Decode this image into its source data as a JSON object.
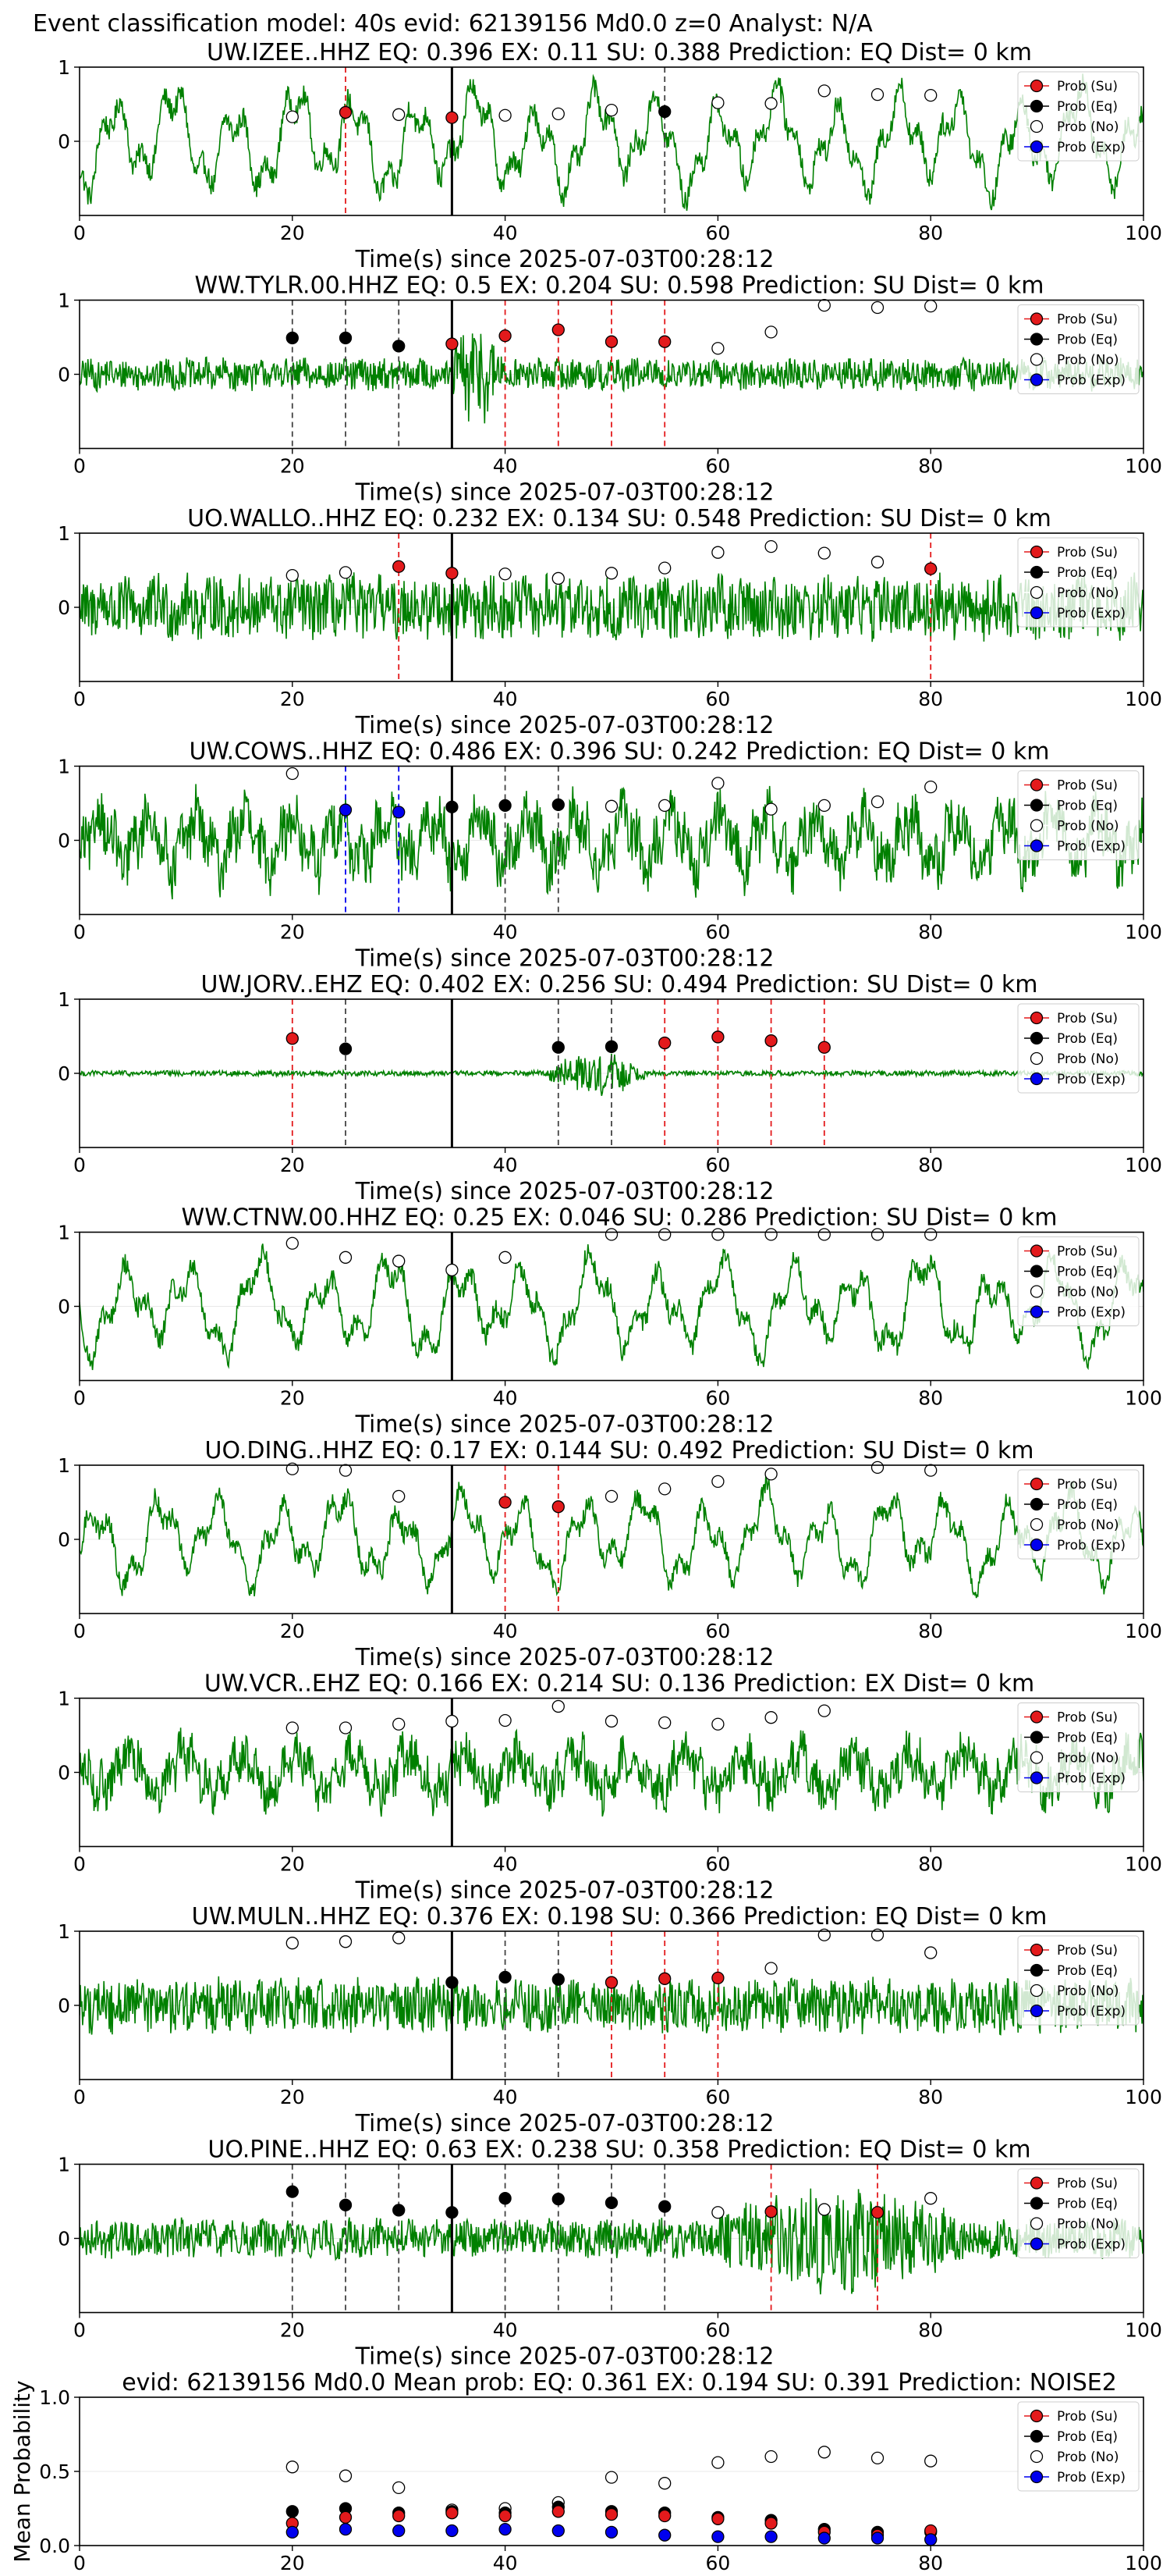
{
  "figure_title": "Event classification model: 40s evid: 62139156 Md0.0 z=0 Analyst: N/A",
  "colors": {
    "trace": "#008000",
    "su": "#e31a1c",
    "eq": "#000000",
    "no": "#ffffff",
    "exp": "#0000ee",
    "vline": "#000000"
  },
  "legend": [
    "Prob (Su)",
    "Prob (Eq)",
    "Prob (No)",
    "Prob (Exp)"
  ],
  "chart_data": [
    {
      "type": "line",
      "title": "UW.IZEE..HHZ   EQ: 0.396  EX: 0.11  SU: 0.388   Prediction: EQ    Dist= 0 km",
      "xlabel": "Time(s) since 2025-07-03T00:28:12",
      "xlim": [
        0,
        100
      ],
      "ylim": [
        -1,
        1
      ],
      "xticks": [
        0,
        20,
        40,
        60,
        80,
        100
      ],
      "yticks": [
        0,
        1
      ],
      "origin_time": 35,
      "amplitude": 0.85,
      "trace_style": "lowfreq",
      "points": [
        {
          "x": 20,
          "no": 0.33
        },
        {
          "x": 25,
          "su": 0.39,
          "line": "su"
        },
        {
          "x": 30,
          "no": 0.36
        },
        {
          "x": 35,
          "su": 0.32
        },
        {
          "x": 40,
          "no": 0.35
        },
        {
          "x": 45,
          "no": 0.37
        },
        {
          "x": 50,
          "no": 0.42
        },
        {
          "x": 55,
          "eq": 0.4,
          "line": "eq"
        },
        {
          "x": 60,
          "no": 0.52
        },
        {
          "x": 65,
          "no": 0.51
        },
        {
          "x": 70,
          "no": 0.68
        },
        {
          "x": 75,
          "no": 0.63
        },
        {
          "x": 80,
          "no": 0.62
        }
      ]
    },
    {
      "type": "line",
      "title": "WW.TYLR.00.HHZ   EQ: 0.5  EX: 0.204  SU: 0.598   Prediction: SU    Dist= 0 km",
      "xlabel": "Time(s) since 2025-07-03T00:28:12",
      "xlim": [
        0,
        100
      ],
      "ylim": [
        -1,
        1
      ],
      "xticks": [
        0,
        20,
        40,
        60,
        80,
        100
      ],
      "yticks": [
        0,
        1
      ],
      "origin_time": 35,
      "amplitude": 0.25,
      "trace_style": "burst",
      "burst": [
        35,
        43,
        3.5
      ],
      "points": [
        {
          "x": 20,
          "eq": 0.49,
          "line": "eq"
        },
        {
          "x": 25,
          "eq": 0.49,
          "line": "eq"
        },
        {
          "x": 30,
          "eq": 0.38,
          "line": "eq"
        },
        {
          "x": 35,
          "su": 0.41
        },
        {
          "x": 40,
          "su": 0.52,
          "line": "su"
        },
        {
          "x": 45,
          "su": 0.6,
          "line": "su"
        },
        {
          "x": 50,
          "su": 0.44,
          "line": "su"
        },
        {
          "x": 55,
          "su": 0.44,
          "line": "su"
        },
        {
          "x": 60,
          "no": 0.35
        },
        {
          "x": 65,
          "no": 0.57
        },
        {
          "x": 70,
          "no": 0.93
        },
        {
          "x": 75,
          "no": 0.9
        },
        {
          "x": 80,
          "no": 0.92
        }
      ]
    },
    {
      "type": "line",
      "title": "UO.WALLO..HHZ   EQ: 0.232  EX: 0.134  SU: 0.548   Prediction: SU    Dist= 0 km",
      "xlabel": "Time(s) since 2025-07-03T00:28:12",
      "xlim": [
        0,
        100
      ],
      "ylim": [
        -1,
        1
      ],
      "xticks": [
        0,
        20,
        40,
        60,
        80,
        100
      ],
      "yticks": [
        0,
        1
      ],
      "origin_time": 35,
      "amplitude": 0.5,
      "trace_style": "hf",
      "points": [
        {
          "x": 20,
          "no": 0.43
        },
        {
          "x": 25,
          "no": 0.47
        },
        {
          "x": 30,
          "su": 0.55,
          "line": "su"
        },
        {
          "x": 35,
          "su": 0.46
        },
        {
          "x": 40,
          "no": 0.45
        },
        {
          "x": 45,
          "no": 0.39
        },
        {
          "x": 50,
          "no": 0.46
        },
        {
          "x": 55,
          "no": 0.53
        },
        {
          "x": 60,
          "no": 0.74
        },
        {
          "x": 65,
          "no": 0.82
        },
        {
          "x": 70,
          "no": 0.73
        },
        {
          "x": 75,
          "no": 0.61
        },
        {
          "x": 80,
          "su": 0.52,
          "line": "su"
        }
      ]
    },
    {
      "type": "line",
      "title": "UW.COWS..HHZ   EQ: 0.486  EX: 0.396  SU: 0.242   Prediction: EQ    Dist= 0 km",
      "xlabel": "Time(s) since 2025-07-03T00:28:12",
      "xlim": [
        0,
        100
      ],
      "ylim": [
        -1,
        1
      ],
      "xticks": [
        0,
        20,
        40,
        60,
        80,
        100
      ],
      "yticks": [
        0,
        1
      ],
      "origin_time": 35,
      "amplitude": 0.8,
      "trace_style": "mixed",
      "points": [
        {
          "x": 20,
          "no": 0.9
        },
        {
          "x": 25,
          "exp": 0.41,
          "line": "exp"
        },
        {
          "x": 30,
          "exp": 0.38,
          "line": "exp"
        },
        {
          "x": 35,
          "eq": 0.45
        },
        {
          "x": 40,
          "eq": 0.47,
          "line": "eq"
        },
        {
          "x": 45,
          "eq": 0.48,
          "line": "eq"
        },
        {
          "x": 50,
          "no": 0.46
        },
        {
          "x": 55,
          "no": 0.47
        },
        {
          "x": 60,
          "no": 0.77
        },
        {
          "x": 65,
          "no": 0.42
        },
        {
          "x": 70,
          "no": 0.47
        },
        {
          "x": 75,
          "no": 0.52
        },
        {
          "x": 80,
          "no": 0.72
        }
      ]
    },
    {
      "type": "line",
      "title": "UW.JORV..EHZ   EQ: 0.402  EX: 0.256  SU: 0.494   Prediction: SU    Dist= 0 km",
      "xlabel": "Time(s) since 2025-07-03T00:28:12",
      "xlim": [
        0,
        100
      ],
      "ylim": [
        -1,
        1
      ],
      "xticks": [
        0,
        20,
        40,
        60,
        80,
        100
      ],
      "yticks": [
        0,
        1
      ],
      "origin_time": 35,
      "amplitude": 0.04,
      "trace_style": "burst",
      "burst": [
        44,
        60,
        9
      ],
      "points": [
        {
          "x": 20,
          "su": 0.47,
          "line": "su"
        },
        {
          "x": 25,
          "eq": 0.33,
          "line": "eq"
        },
        {
          "x": 45,
          "eq": 0.35,
          "line": "eq"
        },
        {
          "x": 50,
          "eq": 0.36,
          "line": "eq"
        },
        {
          "x": 55,
          "su": 0.41,
          "line": "su"
        },
        {
          "x": 60,
          "su": 0.49,
          "line": "su"
        },
        {
          "x": 65,
          "su": 0.44,
          "line": "su"
        },
        {
          "x": 70,
          "su": 0.35,
          "line": "su"
        }
      ]
    },
    {
      "type": "line",
      "title": "WW.CTNW.00.HHZ   EQ: 0.25  EX: 0.046  SU: 0.286   Prediction: SU    Dist= 0 km",
      "xlabel": "Time(s) since 2025-07-03T00:28:12",
      "xlim": [
        0,
        100
      ],
      "ylim": [
        -1,
        1
      ],
      "xticks": [
        0,
        20,
        40,
        60,
        80,
        100
      ],
      "yticks": [
        0,
        1
      ],
      "origin_time": 35,
      "amplitude": 0.8,
      "trace_style": "lowfreq",
      "points": [
        {
          "x": 20,
          "no": 0.85
        },
        {
          "x": 25,
          "no": 0.66
        },
        {
          "x": 30,
          "no": 0.61
        },
        {
          "x": 35,
          "no": 0.49
        },
        {
          "x": 40,
          "no": 0.66
        },
        {
          "x": 50,
          "no": 0.97
        },
        {
          "x": 55,
          "no": 0.97
        },
        {
          "x": 60,
          "no": 0.97
        },
        {
          "x": 65,
          "no": 0.97
        },
        {
          "x": 70,
          "no": 0.97
        },
        {
          "x": 75,
          "no": 0.97
        },
        {
          "x": 80,
          "no": 0.97
        }
      ]
    },
    {
      "type": "line",
      "title": "UO.DING..HHZ   EQ: 0.17  EX: 0.144  SU: 0.492   Prediction: SU    Dist= 0 km",
      "xlabel": "Time(s) since 2025-07-03T00:28:12",
      "xlim": [
        0,
        100
      ],
      "ylim": [
        -1,
        1
      ],
      "xticks": [
        0,
        20,
        40,
        60,
        80,
        100
      ],
      "yticks": [
        0,
        1
      ],
      "origin_time": 35,
      "amplitude": 0.75,
      "trace_style": "lowfreq",
      "points": [
        {
          "x": 20,
          "no": 0.95
        },
        {
          "x": 25,
          "no": 0.93
        },
        {
          "x": 30,
          "no": 0.58
        },
        {
          "x": 40,
          "su": 0.5,
          "line": "su"
        },
        {
          "x": 45,
          "su": 0.44,
          "line": "su"
        },
        {
          "x": 50,
          "no": 0.58
        },
        {
          "x": 55,
          "no": 0.68
        },
        {
          "x": 60,
          "no": 0.78
        },
        {
          "x": 65,
          "no": 0.88
        },
        {
          "x": 75,
          "no": 0.97
        },
        {
          "x": 80,
          "no": 0.93
        }
      ]
    },
    {
      "type": "line",
      "title": "UW.VCR..EHZ   EQ: 0.166  EX: 0.214  SU: 0.136   Prediction: EX    Dist= 0 km",
      "xlabel": "Time(s) since 2025-07-03T00:28:12",
      "xlim": [
        0,
        100
      ],
      "ylim": [
        -1,
        1
      ],
      "xticks": [
        0,
        20,
        40,
        60,
        80,
        100
      ],
      "yticks": [
        0,
        1
      ],
      "origin_time": 35,
      "amplitude": 0.65,
      "trace_style": "mixed",
      "points": [
        {
          "x": 20,
          "no": 0.6
        },
        {
          "x": 25,
          "no": 0.6
        },
        {
          "x": 30,
          "no": 0.65
        },
        {
          "x": 35,
          "no": 0.69
        },
        {
          "x": 40,
          "no": 0.7
        },
        {
          "x": 45,
          "no": 0.89
        },
        {
          "x": 50,
          "no": 0.69
        },
        {
          "x": 55,
          "no": 0.67
        },
        {
          "x": 60,
          "no": 0.65
        },
        {
          "x": 65,
          "no": 0.74
        },
        {
          "x": 70,
          "no": 0.83
        }
      ]
    },
    {
      "type": "line",
      "title": "UW.MULN..HHZ   EQ: 0.376  EX: 0.198  SU: 0.366   Prediction: EQ    Dist= 0 km",
      "xlabel": "Time(s) since 2025-07-03T00:28:12",
      "xlim": [
        0,
        100
      ],
      "ylim": [
        -1,
        1
      ],
      "xticks": [
        0,
        20,
        40,
        60,
        80,
        100
      ],
      "yticks": [
        0,
        1
      ],
      "origin_time": 35,
      "amplitude": 0.42,
      "trace_style": "hf",
      "points": [
        {
          "x": 20,
          "no": 0.84
        },
        {
          "x": 25,
          "no": 0.86
        },
        {
          "x": 30,
          "no": 0.91
        },
        {
          "x": 35,
          "eq": 0.31
        },
        {
          "x": 40,
          "eq": 0.38,
          "line": "eq"
        },
        {
          "x": 45,
          "eq": 0.35,
          "line": "eq"
        },
        {
          "x": 50,
          "su": 0.31,
          "line": "su"
        },
        {
          "x": 55,
          "su": 0.36,
          "line": "su"
        },
        {
          "x": 60,
          "su": 0.37,
          "line": "su"
        },
        {
          "x": 65,
          "no": 0.5
        },
        {
          "x": 70,
          "no": 0.95
        },
        {
          "x": 75,
          "no": 0.95
        },
        {
          "x": 80,
          "no": 0.71
        }
      ]
    },
    {
      "type": "line",
      "title": "UO.PINE..HHZ   EQ: 0.63  EX: 0.238  SU: 0.358   Prediction: EQ    Dist= 0 km",
      "xlabel": "Time(s) since 2025-07-03T00:28:12",
      "xlim": [
        0,
        100
      ],
      "ylim": [
        -1,
        1
      ],
      "xticks": [
        0,
        20,
        40,
        60,
        80,
        100
      ],
      "yticks": [
        0,
        1
      ],
      "origin_time": 35,
      "amplitude": 0.3,
      "trace_style": "burst",
      "burst": [
        60,
        100,
        2.8
      ],
      "points": [
        {
          "x": 20,
          "eq": 0.63,
          "line": "eq"
        },
        {
          "x": 25,
          "eq": 0.45,
          "line": "eq"
        },
        {
          "x": 30,
          "eq": 0.38,
          "line": "eq"
        },
        {
          "x": 35,
          "eq": 0.35
        },
        {
          "x": 40,
          "eq": 0.54,
          "line": "eq"
        },
        {
          "x": 45,
          "eq": 0.53,
          "line": "eq"
        },
        {
          "x": 50,
          "eq": 0.48,
          "line": "eq"
        },
        {
          "x": 55,
          "eq": 0.43,
          "line": "eq"
        },
        {
          "x": 60,
          "no": 0.35
        },
        {
          "x": 65,
          "su": 0.36,
          "line": "su"
        },
        {
          "x": 70,
          "no": 0.39
        },
        {
          "x": 75,
          "su": 0.35,
          "line": "su"
        },
        {
          "x": 80,
          "no": 0.54
        }
      ]
    },
    {
      "type": "scatter",
      "title": "evid: 62139156  Md0.0   Mean prob:   EQ: 0.361  EX: 0.194  SU: 0.391   Prediction: NOISE2",
      "xlabel": "",
      "ylabel": "Mean Probability",
      "xlim": [
        0,
        100
      ],
      "ylim": [
        0,
        1
      ],
      "xticks": [
        0,
        20,
        40,
        60,
        80,
        100
      ],
      "yticks": [
        0.0,
        0.5,
        1.0
      ],
      "ytick_labels": [
        "0.0",
        "0.5",
        "1.0"
      ],
      "x": [
        20,
        25,
        30,
        35,
        40,
        45,
        50,
        55,
        60,
        65,
        70,
        75,
        80
      ],
      "series": [
        {
          "name": "Prob (No)",
          "key": "no",
          "values": [
            0.53,
            0.47,
            0.39,
            0.24,
            0.25,
            0.29,
            0.46,
            0.42,
            0.56,
            0.6,
            0.63,
            0.59,
            0.57
          ]
        },
        {
          "name": "Prob (Eq)",
          "key": "eq",
          "values": [
            0.23,
            0.25,
            0.22,
            0.23,
            0.22,
            0.26,
            0.23,
            0.22,
            0.19,
            0.17,
            0.11,
            0.09,
            0.09
          ]
        },
        {
          "name": "Prob (Su)",
          "key": "su",
          "values": [
            0.15,
            0.19,
            0.2,
            0.22,
            0.2,
            0.23,
            0.21,
            0.2,
            0.18,
            0.15,
            0.09,
            0.07,
            0.1
          ]
        },
        {
          "name": "Prob (Exp)",
          "key": "exp",
          "values": [
            0.09,
            0.11,
            0.1,
            0.1,
            0.11,
            0.1,
            0.09,
            0.07,
            0.06,
            0.06,
            0.05,
            0.05,
            0.04
          ]
        }
      ]
    }
  ]
}
